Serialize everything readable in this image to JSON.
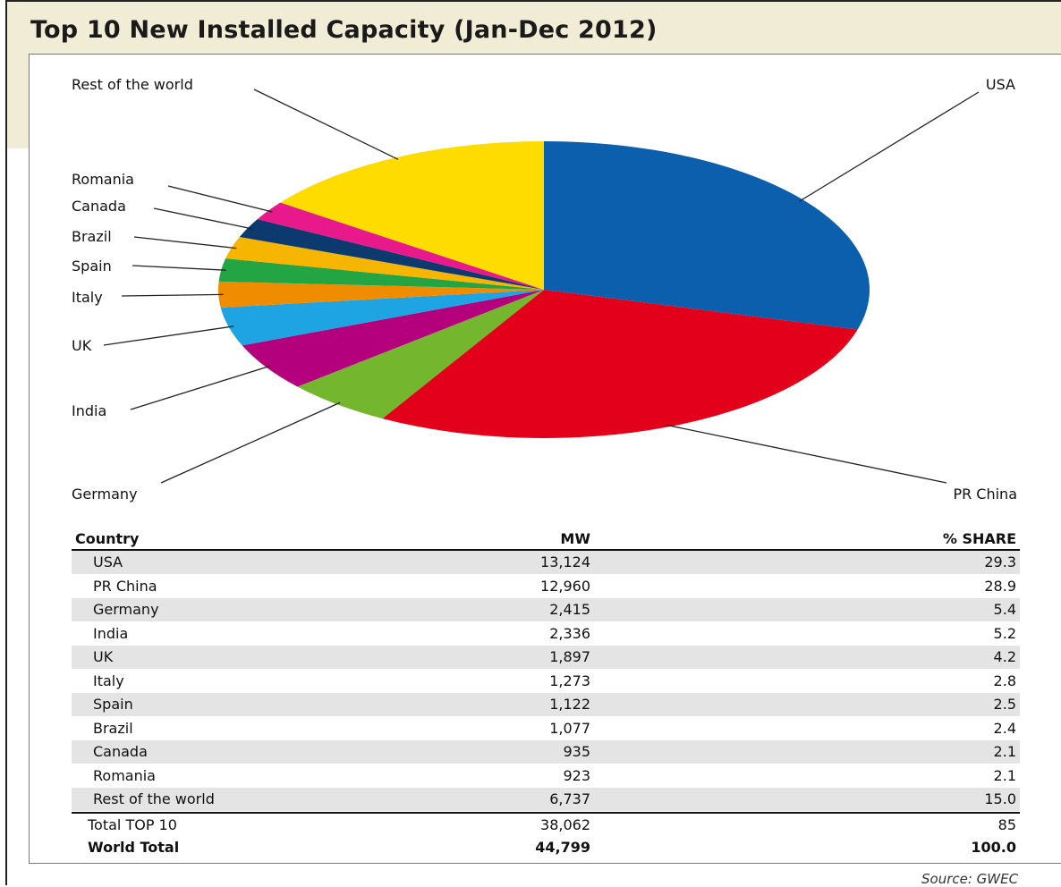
{
  "title": "Top 10 New Installed Capacity (Jan-Dec 2012)",
  "source": "Source: GWEC",
  "chart_data": {
    "type": "pie",
    "title": "Top 10 New Installed Capacity (Jan-Dec 2012)",
    "slices": [
      {
        "label": "USA",
        "value": 29.3,
        "color": "#0b5fad"
      },
      {
        "label": "PR China",
        "value": 28.9,
        "color": "#e3001b"
      },
      {
        "label": "Germany",
        "value": 5.4,
        "color": "#74b72e"
      },
      {
        "label": "India",
        "value": 5.2,
        "color": "#b5007e"
      },
      {
        "label": "UK",
        "value": 4.2,
        "color": "#1ea3e3"
      },
      {
        "label": "Italy",
        "value": 2.8,
        "color": "#ef8c00"
      },
      {
        "label": "Spain",
        "value": 2.5,
        "color": "#23a544"
      },
      {
        "label": "Brazil",
        "value": 2.4,
        "color": "#f6b500"
      },
      {
        "label": "Canada",
        "value": 2.1,
        "color": "#0d3a6e"
      },
      {
        "label": "Romania",
        "value": 2.1,
        "color": "#e8198b"
      },
      {
        "label": "Rest of the world",
        "value": 15.0,
        "color": "#ffdc00"
      }
    ]
  },
  "table": {
    "headers": {
      "country": "Country",
      "mw": "MW",
      "share": "% SHARE"
    },
    "rows": [
      {
        "country": "USA",
        "mw": "13,124",
        "share": "29.3"
      },
      {
        "country": "PR China",
        "mw": "12,960",
        "share": "28.9"
      },
      {
        "country": "Germany",
        "mw": "2,415",
        "share": "5.4"
      },
      {
        "country": "India",
        "mw": "2,336",
        "share": "5.2"
      },
      {
        "country": "UK",
        "mw": "1,897",
        "share": "4.2"
      },
      {
        "country": "Italy",
        "mw": "1,273",
        "share": "2.8"
      },
      {
        "country": "Spain",
        "mw": "1,122",
        "share": "2.5"
      },
      {
        "country": "Brazil",
        "mw": "1,077",
        "share": "2.4"
      },
      {
        "country": "Canada",
        "mw": "935",
        "share": "2.1"
      },
      {
        "country": "Romania",
        "mw": "923",
        "share": "2.1"
      },
      {
        "country": "Rest of the world",
        "mw": "6,737",
        "share": "15.0"
      }
    ],
    "totals": [
      {
        "country": "Total TOP 10",
        "mw": "38,062",
        "share": "85",
        "bold": false
      },
      {
        "country": "World Total",
        "mw": "44,799",
        "share": "100.0",
        "bold": true
      }
    ]
  }
}
